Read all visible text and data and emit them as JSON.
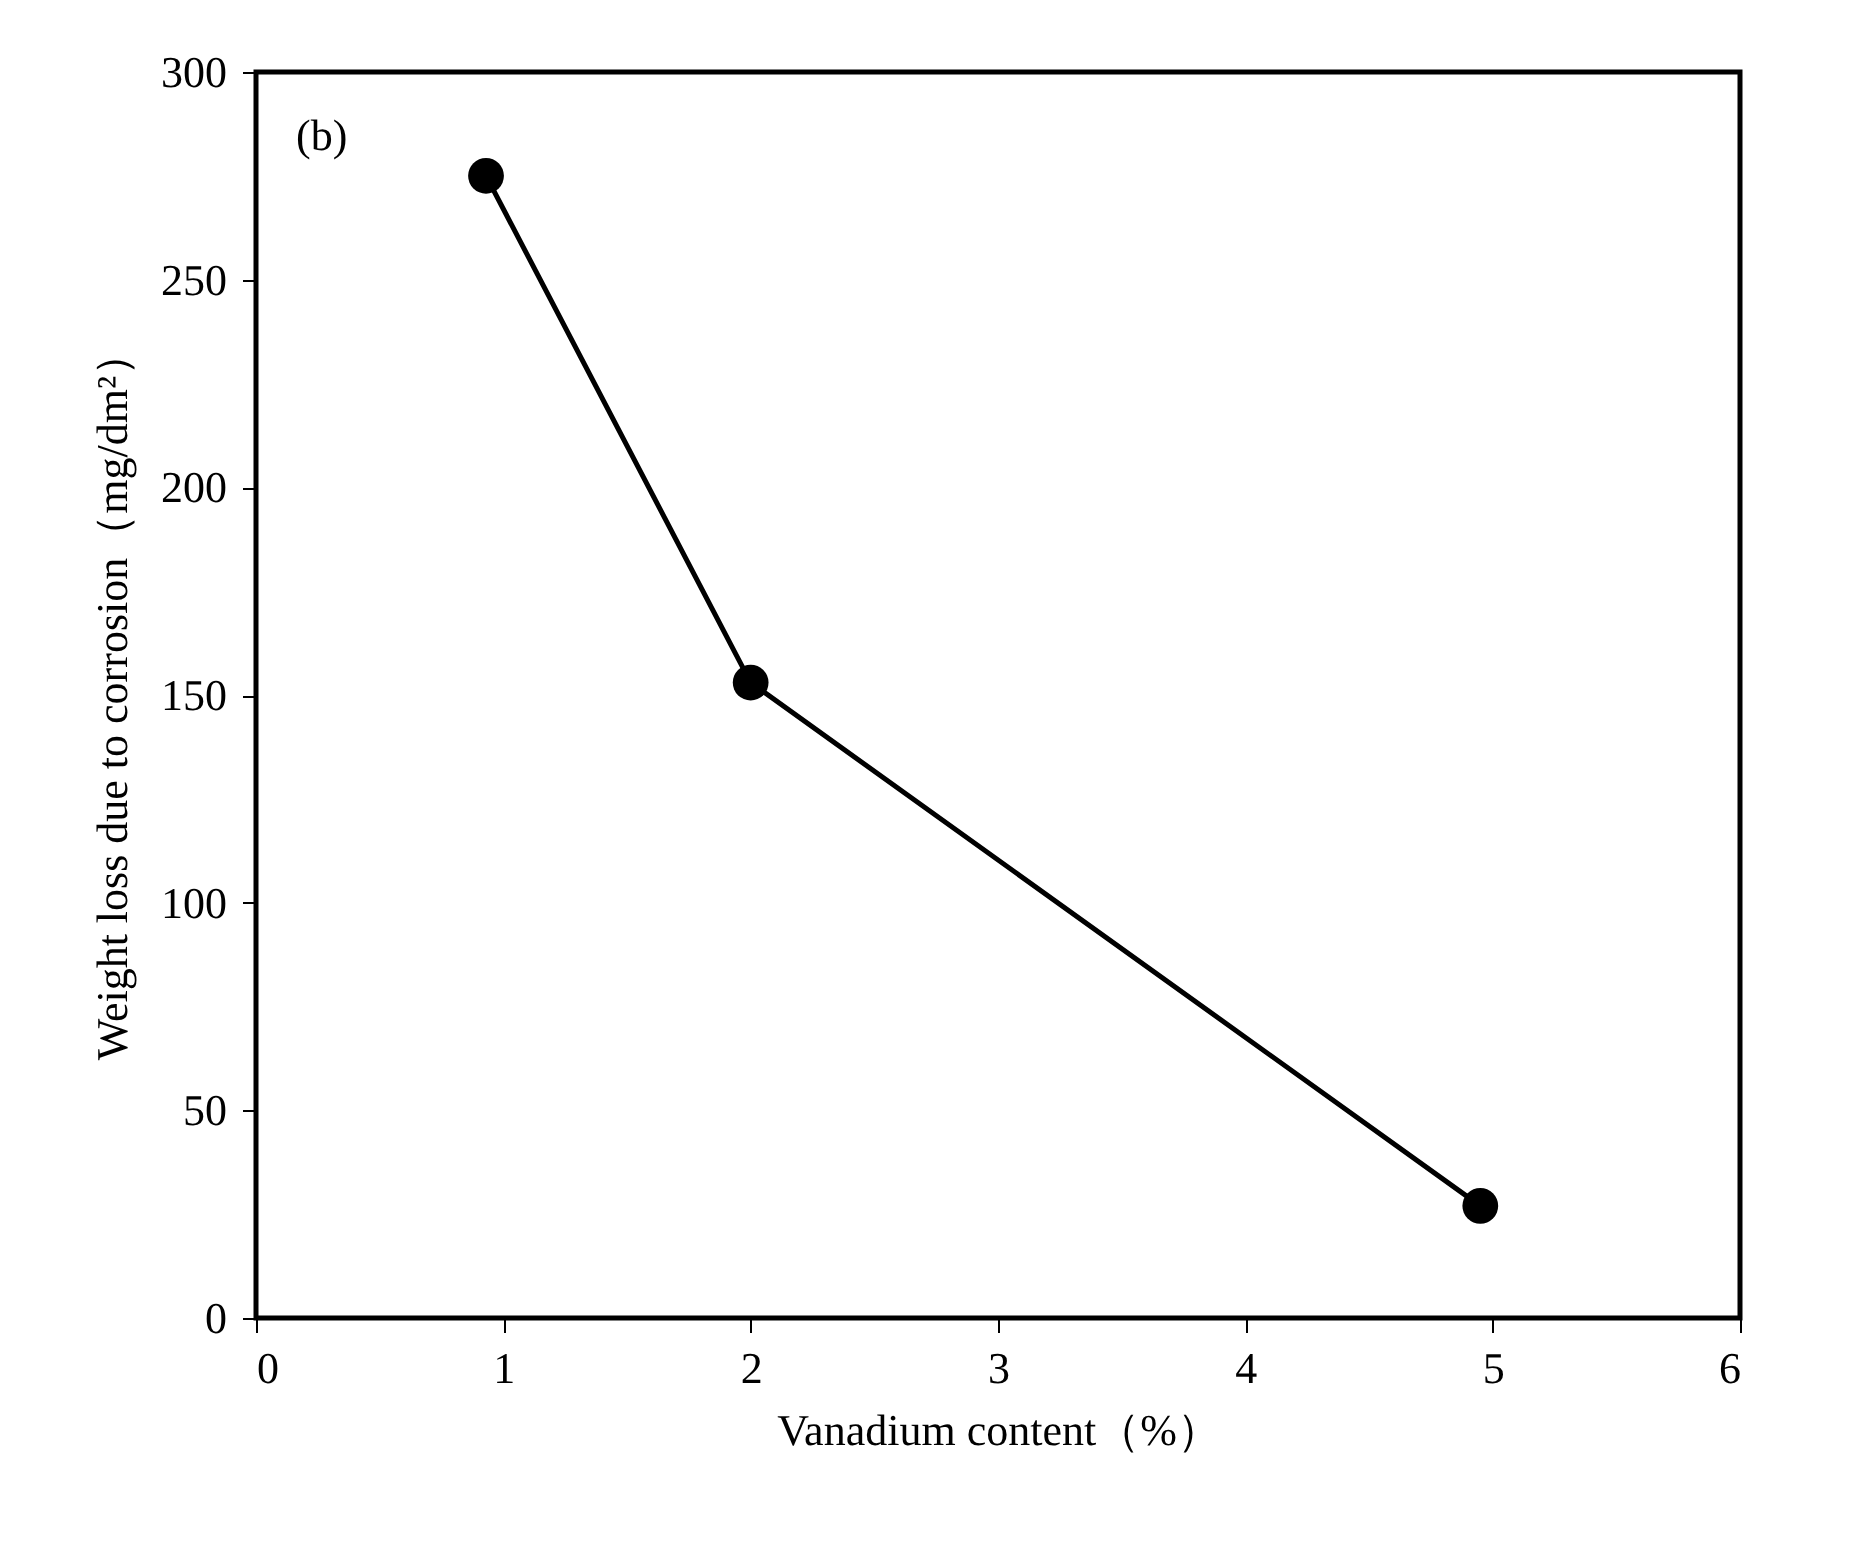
{
  "chart_data": {
    "type": "line",
    "xlabel": "Vanadium content（%）",
    "ylabel": "Weight loss due to corrosion（mg/dm²）",
    "annotations": [
      "(b)"
    ],
    "x": [
      0.93,
      2,
      4.95
    ],
    "series": [
      {
        "color": "#000000",
        "values": [
          275,
          153,
          27
        ]
      }
    ],
    "xlim": [
      0,
      6
    ],
    "xticks": [
      0,
      1,
      2,
      3,
      4,
      5,
      6
    ],
    "ylim": [
      0,
      300
    ],
    "yticks": [
      0,
      50,
      100,
      150,
      200,
      250,
      300
    ],
    "grid": false,
    "marker": "circle",
    "line_style": "solid"
  }
}
